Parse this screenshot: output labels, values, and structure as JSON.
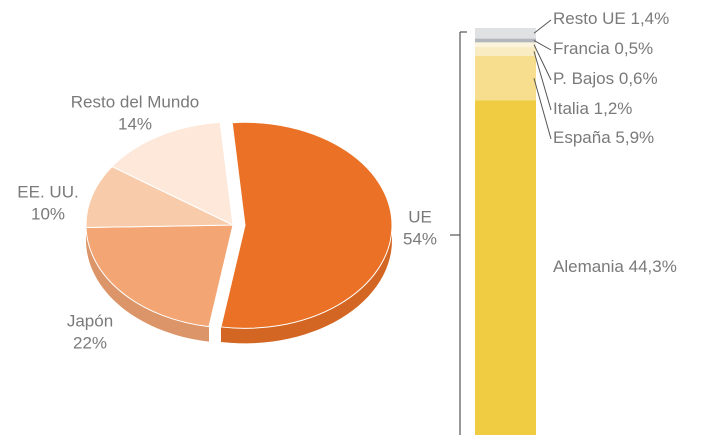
{
  "chart_data": [
    {
      "type": "pie",
      "categories": [
        "UE",
        "Japón",
        "EE. UU.",
        "Resto del Mundo"
      ],
      "values": [
        54,
        22,
        10,
        14
      ],
      "value_labels": [
        "54%",
        "22%",
        "10%",
        "14%"
      ],
      "colors": [
        "#ea7126",
        "#f3a673",
        "#f8cbaa",
        "#fde8da"
      ]
    },
    {
      "type": "stacked_bar",
      "categories": [
        "Alemania",
        "España",
        "Italia",
        "P. Bajos",
        "Francia",
        "Resto UE"
      ],
      "values": [
        44.3,
        5.9,
        1.2,
        0.6,
        0.5,
        1.4
      ],
      "value_labels": [
        "44,3%",
        "5,9%",
        "1,2%",
        "0,6%",
        "0,5%",
        "1,4%"
      ],
      "colors": [
        "#efcc42",
        "#f6de8e",
        "#f9ecc2",
        "#fcf4dc",
        "#b3b7bb",
        "#dfe1e3"
      ]
    }
  ]
}
